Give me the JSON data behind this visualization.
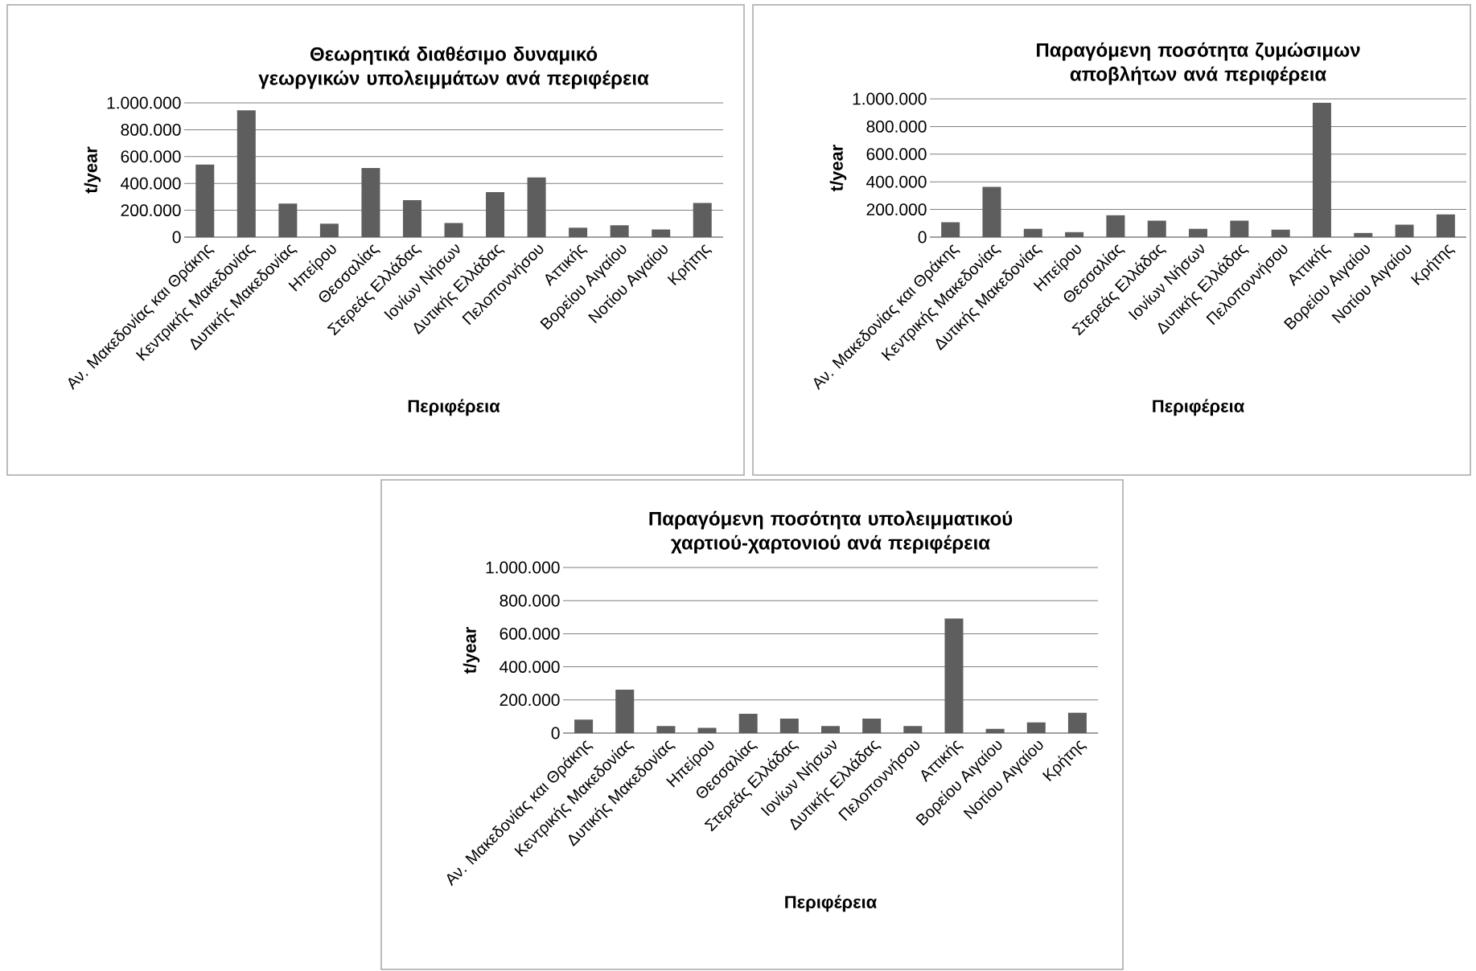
{
  "chart_data": [
    {
      "type": "bar",
      "title": "Θεωρητικά διαθέσιμο δυναμικό γεωργικών υπολειμμάτων ανά περιφέρεια",
      "xlabel": "Περιφέρεια",
      "ylabel": "t/year",
      "color": "#5e5e5e",
      "grid": "y",
      "categories": [
        "Αν. Μακεδονίας και Θράκης",
        "Κεντρικής Μακεδονίας",
        "Δυτικής Μακεδονίας",
        "Ηπείρου",
        "Θεσσαλίας",
        "Στερεάς Ελλάδας",
        "Ιονίων Νήσων",
        "Δυτικής Ελλάδας",
        "Πελοποννήσου",
        "Αττικής",
        "Βορείου Αιγαίου",
        "Νοτίου Αιγαίου",
        "Κρήτης"
      ],
      "values": [
        540000,
        945000,
        250000,
        100000,
        515000,
        275000,
        105000,
        335000,
        445000,
        70000,
        88000,
        57000,
        255000
      ],
      "ylim": [
        0,
        1000000
      ],
      "yticks": [
        0,
        {
          "value": 200000,
          "label": "200.000"
        },
        {
          "value": 400000,
          "label": "400.000"
        },
        {
          "value": 600000,
          "label": "600.000"
        },
        {
          "value": 800000,
          "label": "800.000"
        },
        {
          "value": 1000000,
          "label": "1.000.000"
        }
      ]
    },
    {
      "type": "bar",
      "title": "Παραγόμενη ποσότητα ζυμώσιμων αποβλήτων ανά περιφέρεια",
      "xlabel": "Περιφέρεια",
      "ylabel": "t/year",
      "color": "#5e5e5e",
      "grid": "y",
      "categories": [
        "Αν. Μακεδονίας και Θράκης",
        "Κεντρικής Μακεδονίας",
        "Δυτικής Μακεδονίας",
        "Ηπείρου",
        "Θεσσαλίας",
        "Στερεάς Ελλάδας",
        "Ιονίων Νήσων",
        "Δυτικής Ελλάδας",
        "Πελοποννήσου",
        "Αττικής",
        "Βορείου Αιγαίου",
        "Νοτίου Αιγαίου",
        "Κρήτης"
      ],
      "values": [
        107000,
        364000,
        60000,
        36000,
        158000,
        119000,
        60000,
        119000,
        54000,
        973000,
        30000,
        90000,
        164000
      ],
      "ylim": [
        0,
        1000000
      ],
      "yticks": [
        0,
        {
          "value": 200000,
          "label": "200.000"
        },
        {
          "value": 400000,
          "label": "400.000"
        },
        {
          "value": 600000,
          "label": "600.000"
        },
        {
          "value": 800000,
          "label": "800.000"
        },
        {
          "value": 1000000,
          "label": "1.000.000"
        }
      ]
    },
    {
      "type": "bar",
      "title": "Παραγόμενη ποσότητα υπολειμματικού χαρτιού-χαρτονιού ανά περιφέρεια",
      "xlabel": "Περιφέρεια",
      "ylabel": "t/year",
      "color": "#5e5e5e",
      "grid": "y",
      "categories": [
        "Αν. Μακεδονίας και Θράκης",
        "Κεντρικής Μακεδονίας",
        "Δυτικής Μακεδονίας",
        "Ηπείρου",
        "Θεσσαλίας",
        "Στερεάς Ελλάδας",
        "Ιονίων Νήσων",
        "Δυτικής Ελλάδας",
        "Πελοποννήσου",
        "Αττικής",
        "Βορείου Αιγαίου",
        "Νοτίου Αιγαίου",
        "Κρήτης"
      ],
      "values": [
        81000,
        262000,
        43000,
        31000,
        117000,
        87000,
        43000,
        87000,
        43000,
        692000,
        25000,
        64000,
        122000
      ],
      "ylim": [
        0,
        1000000
      ],
      "yticks": [
        0,
        {
          "value": 200000,
          "label": "200.000"
        },
        {
          "value": 400000,
          "label": "400.000"
        },
        {
          "value": 600000,
          "label": "600.000"
        },
        {
          "value": 800000,
          "label": "800.000"
        },
        {
          "value": 1000000,
          "label": "1.000.000"
        }
      ]
    }
  ]
}
